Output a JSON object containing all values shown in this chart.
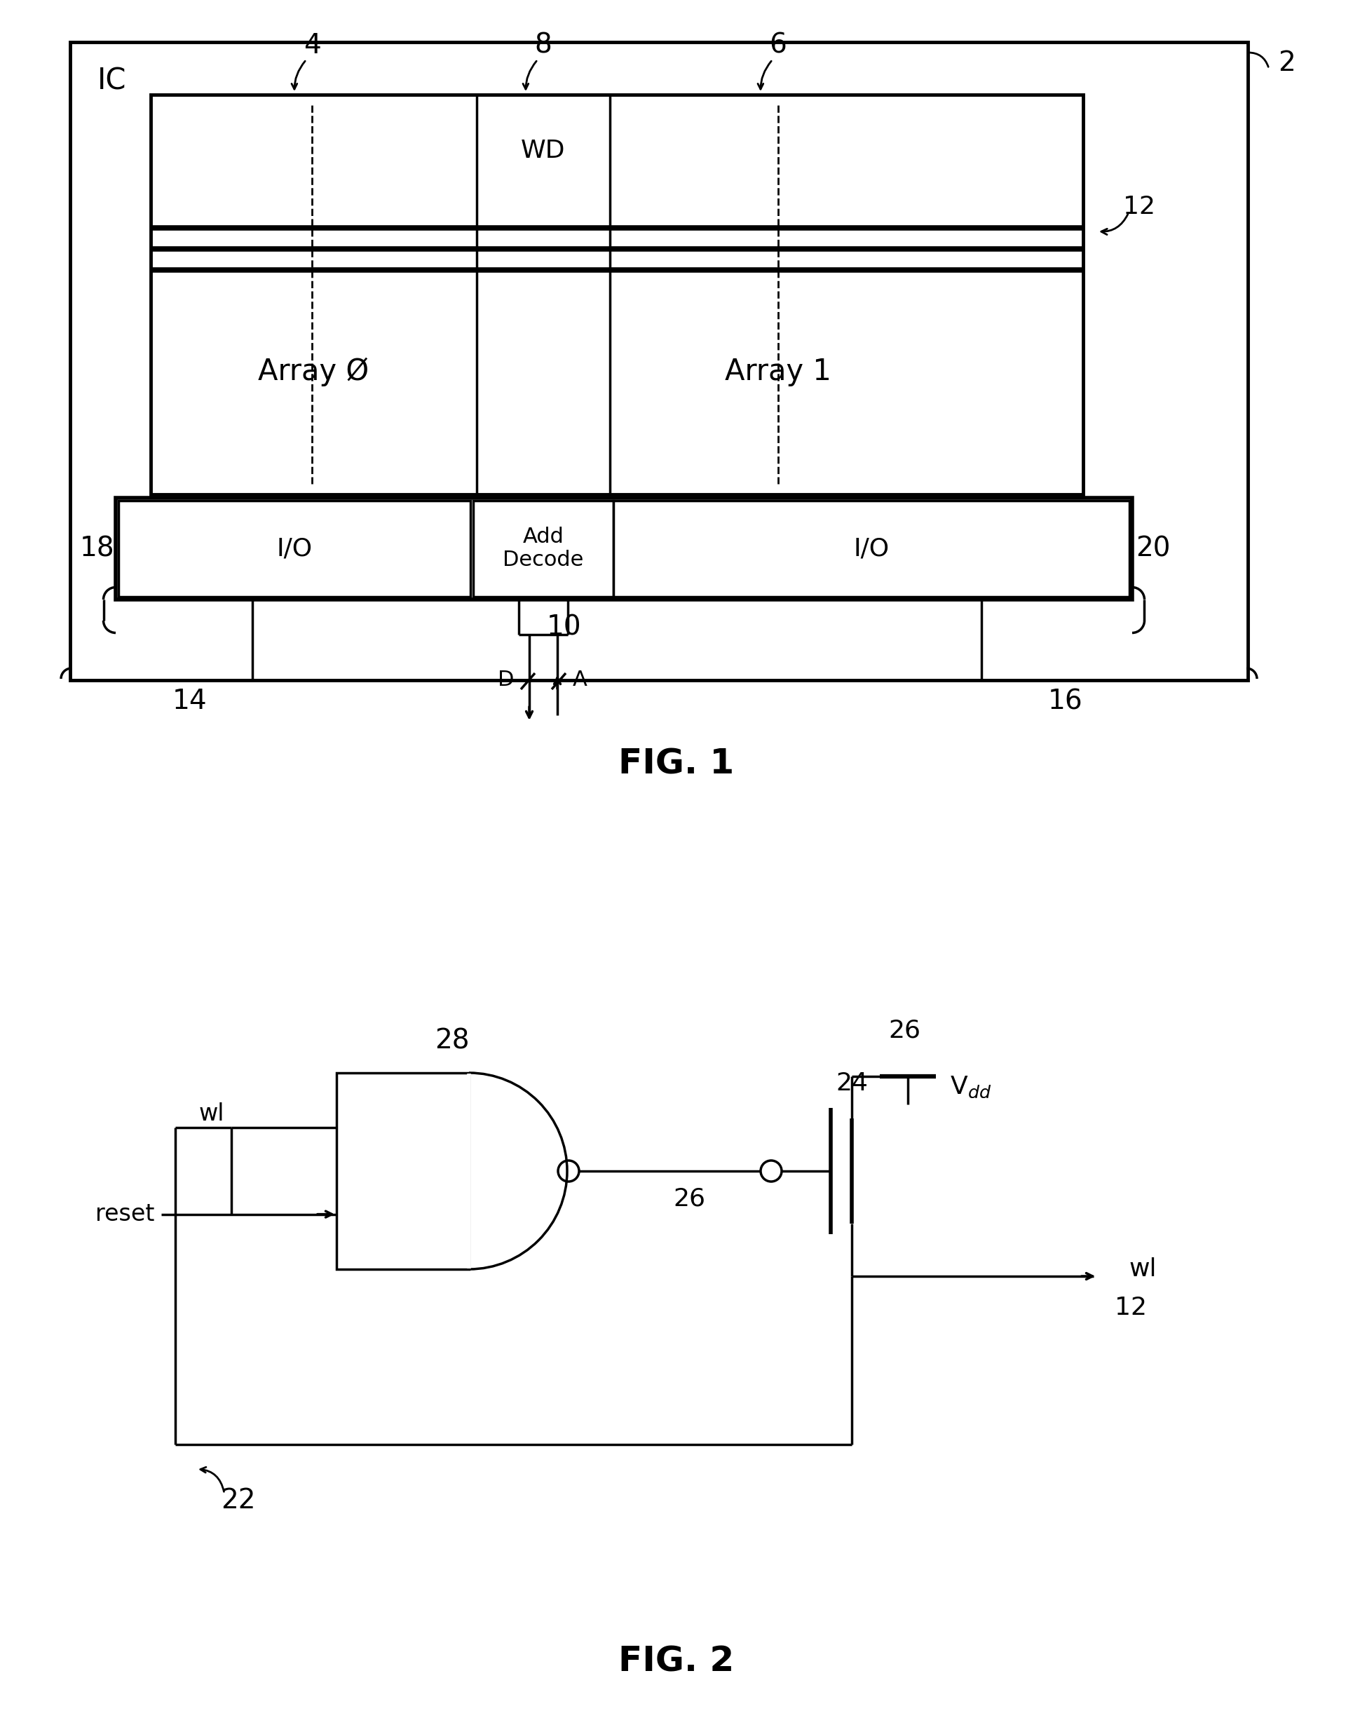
{
  "bg_color": "#ffffff",
  "fig1": {
    "title": "FIG. 1",
    "ic_label": "IC",
    "ref2": "2",
    "wd_label": "WD",
    "array0_label": "Array Ø",
    "array1_label": "Array 1",
    "io_left_label": "I/O",
    "io_right_label": "I/O",
    "add_decode_label": "Add\nDecode"
  },
  "fig2": {
    "title": "FIG. 2",
    "wl_label": "wl",
    "reset_label": "reset",
    "vdd_label": "V$_{dd}$"
  }
}
